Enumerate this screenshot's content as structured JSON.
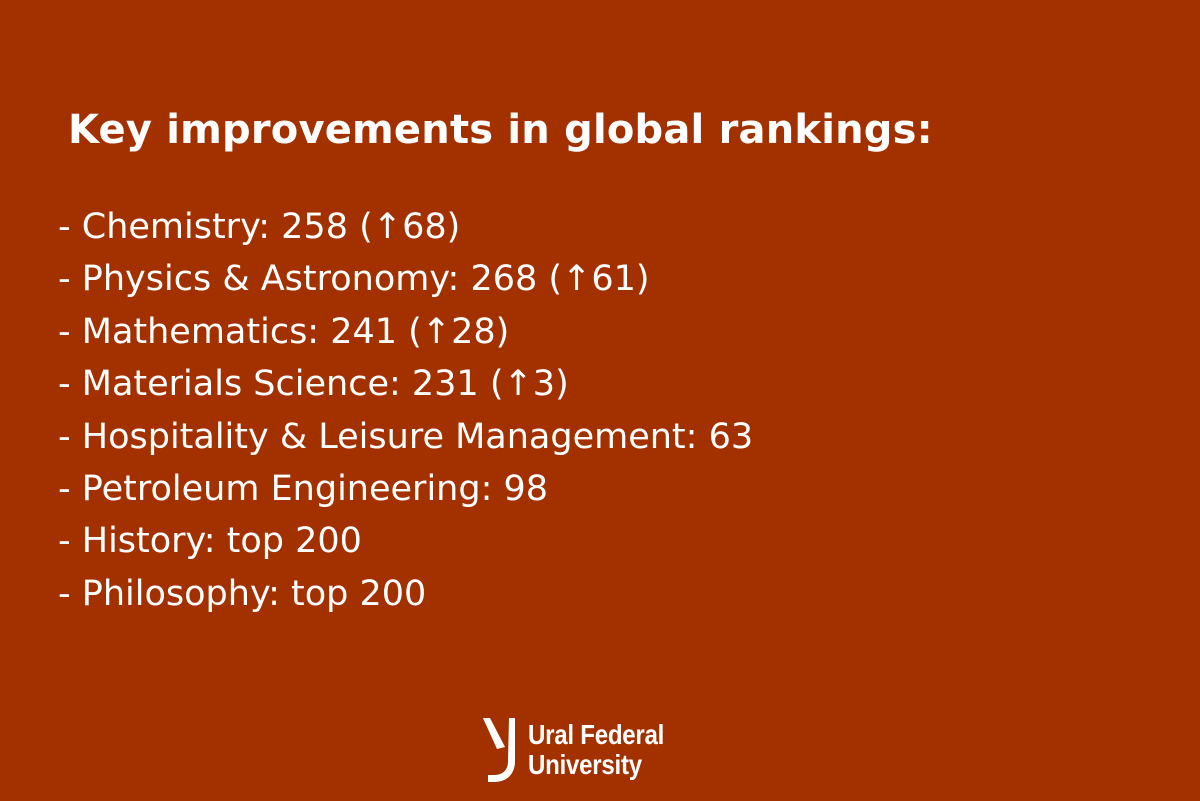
{
  "title": "Key improvements in global rankings:",
  "items": [
    "- Chemistry: 258 (↑68)",
    "- Physics & Astronomy: 268 (↑61)",
    "- Mathematics: 241 (↑28)",
    "- Materials Science: 231 (↑3)",
    "- Hospitality & Leisure Management: 63",
    "- Petroleum Engineering: 98",
    "- History: top 200",
    "- Philosophy: top 200"
  ],
  "logo": {
    "line1": "Ural Federal",
    "line2": "University",
    "icon": "ural-federal-university-emblem"
  },
  "colors": {
    "background": "#a33100",
    "text": "#ffffff"
  }
}
